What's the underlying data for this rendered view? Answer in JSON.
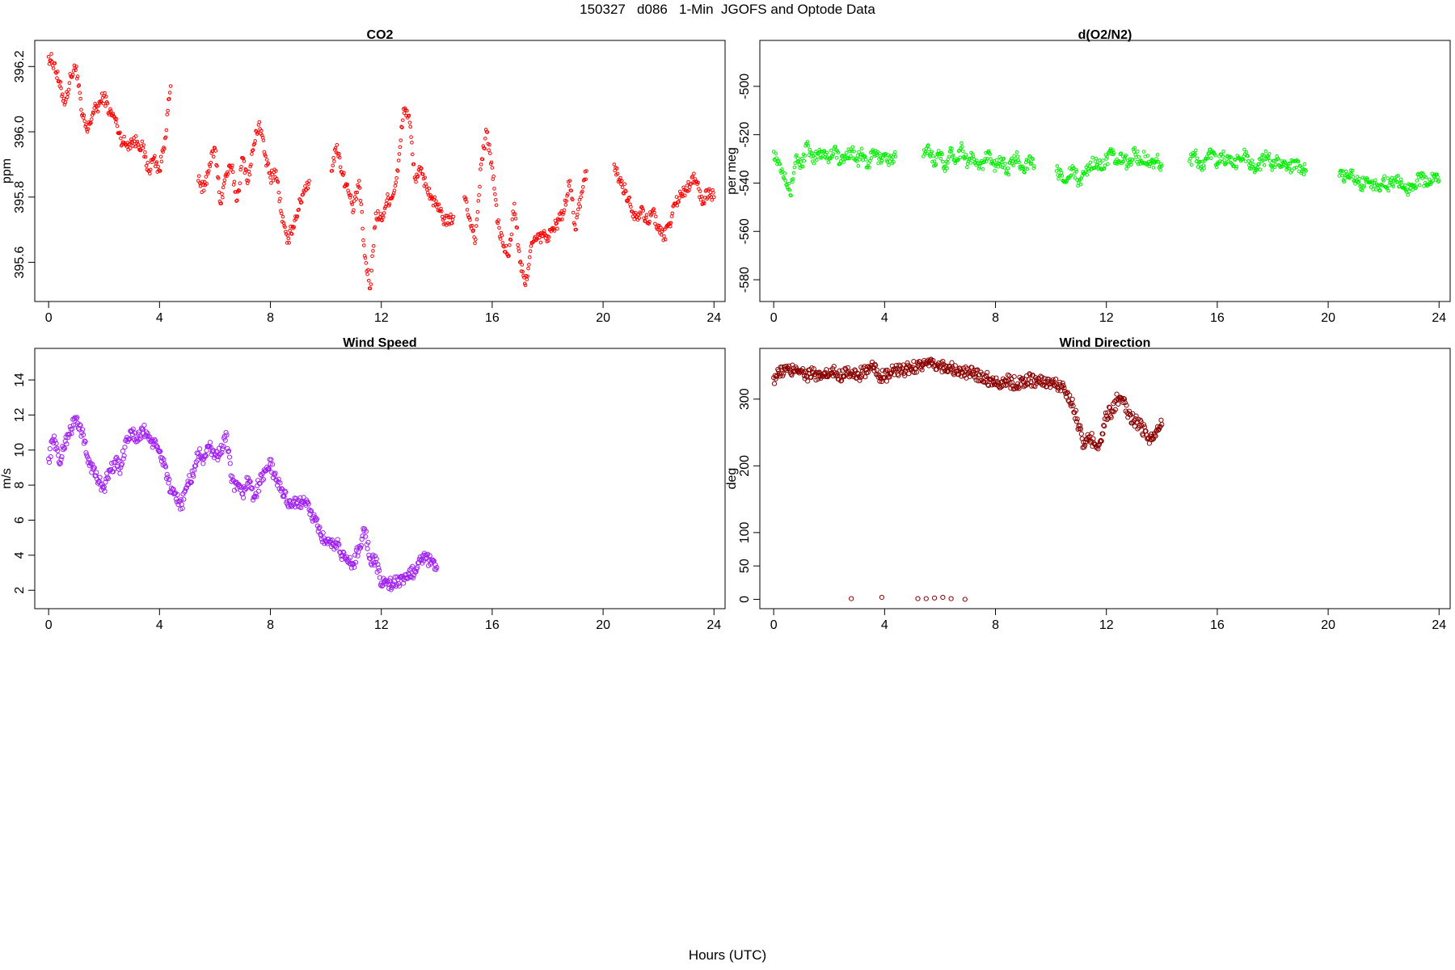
{
  "page_title": "150327   d086   1-Min  JGOFS and Optode Data",
  "x_axis_title": "Hours (UTC)",
  "chart_data": [
    {
      "type": "scatter",
      "title": "CO2",
      "ylabel": "ppm",
      "xlabel": "",
      "xlim": [
        -0.5,
        24.4
      ],
      "ylim": [
        395.48,
        396.28
      ],
      "x_ticks": [
        0,
        4,
        8,
        12,
        16,
        20,
        24
      ],
      "y_ticks": [
        395.6,
        395.8,
        396.0,
        396.2
      ],
      "y_tick_labels": [
        "395.6",
        "395.8",
        "396.0",
        "396.2"
      ],
      "color": "#ff0000",
      "marker_radius": 1.8,
      "series": [
        {
          "x": [
            0.0,
            0.2,
            0.4,
            0.6,
            0.8,
            1.0,
            1.2,
            1.4,
            1.6,
            1.8,
            2.0,
            2.2,
            2.4,
            2.6,
            2.8,
            3.0,
            3.2,
            3.4,
            3.6,
            3.8,
            4.0,
            4.2,
            4.4,
            5.4,
            5.6,
            5.8,
            6.0,
            6.2,
            6.4,
            6.6,
            6.8,
            7.0,
            7.2,
            7.4,
            7.6,
            7.8,
            8.0,
            8.2,
            8.4,
            8.6,
            8.8,
            9.0,
            9.2,
            9.4,
            10.2,
            10.4,
            10.6,
            10.8,
            11.0,
            11.2,
            11.4,
            11.6,
            11.8,
            12.0,
            12.2,
            12.4,
            12.6,
            12.8,
            13.0,
            13.2,
            13.4,
            13.6,
            13.8,
            14.0,
            14.2,
            14.4,
            14.6,
            15.0,
            15.2,
            15.4,
            15.6,
            15.8,
            16.0,
            16.2,
            16.4,
            16.6,
            16.8,
            17.0,
            17.2,
            17.4,
            17.6,
            17.8,
            18.0,
            18.2,
            18.4,
            18.6,
            18.8,
            19.0,
            19.2,
            19.4,
            20.4,
            20.6,
            20.8,
            21.0,
            21.2,
            21.4,
            21.6,
            21.8,
            22.0,
            22.2,
            22.4,
            22.6,
            22.8,
            23.0,
            23.2,
            23.4,
            23.6,
            23.8,
            24.0
          ],
          "y": [
            396.23,
            396.21,
            396.14,
            396.09,
            396.17,
            396.2,
            396.05,
            396.0,
            396.06,
            396.08,
            396.11,
            396.06,
            396.04,
            395.98,
            395.96,
            395.97,
            395.97,
            395.95,
            395.88,
            395.92,
            395.88,
            395.98,
            396.14,
            395.85,
            395.82,
            395.9,
            395.95,
            395.78,
            395.87,
            395.89,
            395.79,
            395.92,
            395.85,
            395.96,
            396.03,
            395.93,
            395.86,
            395.88,
            395.75,
            395.66,
            395.71,
            395.76,
            395.82,
            395.85,
            395.88,
            395.96,
            395.87,
            395.82,
            395.76,
            395.85,
            395.62,
            395.52,
            395.75,
            395.73,
            395.79,
            395.8,
            395.88,
            396.07,
            396.05,
            395.86,
            395.88,
            395.84,
            395.8,
            395.77,
            395.74,
            395.72,
            395.74,
            395.8,
            395.73,
            395.67,
            395.9,
            396.0,
            395.89,
            395.72,
            395.65,
            395.62,
            395.78,
            395.6,
            395.53,
            395.65,
            395.67,
            395.68,
            395.68,
            395.7,
            395.73,
            395.76,
            395.85,
            395.7,
            395.8,
            395.88,
            395.9,
            395.85,
            395.82,
            395.77,
            395.74,
            395.77,
            395.72,
            395.76,
            395.7,
            395.68,
            395.72,
            395.78,
            395.81,
            395.82,
            395.86,
            395.84,
            395.78,
            395.82,
            395.8
          ]
        }
      ]
    },
    {
      "type": "scatter",
      "title": "d(O2/N2)",
      "ylabel": "per meg",
      "xlabel": "",
      "xlim": [
        -0.5,
        24.4
      ],
      "ylim": [
        -589,
        -481
      ],
      "x_ticks": [
        0,
        4,
        8,
        12,
        16,
        20,
        24
      ],
      "y_ticks": [
        -580,
        -560,
        -540,
        -520,
        -500
      ],
      "y_tick_labels": [
        "-580",
        "-560",
        "-540",
        "-520",
        "-500"
      ],
      "color": "#00ee00",
      "marker_radius": 1.8,
      "series": [
        {
          "x": [
            0.0,
            0.2,
            0.4,
            0.6,
            0.8,
            1.0,
            1.2,
            1.4,
            1.6,
            1.8,
            2.0,
            2.2,
            2.4,
            2.6,
            2.8,
            3.0,
            3.2,
            3.4,
            3.6,
            3.8,
            4.0,
            4.2,
            4.4,
            5.4,
            5.6,
            5.8,
            6.0,
            6.2,
            6.4,
            6.6,
            6.8,
            7.0,
            7.2,
            7.4,
            7.6,
            7.8,
            8.0,
            8.2,
            8.4,
            8.6,
            8.8,
            9.0,
            9.2,
            9.4,
            10.2,
            10.4,
            10.6,
            10.8,
            11.0,
            11.2,
            11.4,
            11.6,
            11.8,
            12.0,
            12.2,
            12.4,
            12.6,
            12.8,
            13.0,
            13.2,
            13.4,
            13.6,
            13.8,
            14.0,
            15.0,
            15.2,
            15.4,
            15.6,
            15.8,
            16.0,
            16.2,
            16.4,
            16.6,
            16.8,
            17.0,
            17.2,
            17.4,
            17.6,
            17.8,
            18.0,
            18.2,
            18.4,
            18.6,
            18.8,
            19.0,
            19.2,
            20.4,
            20.6,
            20.8,
            21.0,
            21.2,
            21.4,
            21.6,
            21.8,
            22.0,
            22.2,
            22.4,
            22.6,
            22.8,
            23.0,
            23.2,
            23.4,
            23.6,
            23.8,
            24.0
          ],
          "y": [
            -527,
            -532,
            -536,
            -545,
            -529,
            -533,
            -524,
            -531,
            -528,
            -527,
            -530,
            -525,
            -532,
            -529,
            -526,
            -531,
            -528,
            -533,
            -527,
            -530,
            -528,
            -531,
            -529,
            -529,
            -526,
            -531,
            -528,
            -533,
            -527,
            -530,
            -525,
            -532,
            -529,
            -534,
            -531,
            -528,
            -533,
            -530,
            -535,
            -532,
            -529,
            -534,
            -531,
            -533,
            -535,
            -537,
            -538,
            -534,
            -540,
            -536,
            -533,
            -531,
            -534,
            -530,
            -528,
            -532,
            -529,
            -533,
            -527,
            -531,
            -529,
            -532,
            -530,
            -533,
            -531,
            -528,
            -534,
            -530,
            -527,
            -532,
            -529,
            -531,
            -533,
            -530,
            -528,
            -532,
            -534,
            -531,
            -529,
            -533,
            -530,
            -532,
            -534,
            -531,
            -533,
            -535,
            -537,
            -538,
            -536,
            -539,
            -541,
            -538,
            -540,
            -542,
            -539,
            -541,
            -538,
            -540,
            -543,
            -541,
            -539,
            -538,
            -541,
            -537,
            -539
          ]
        }
      ]
    },
    {
      "type": "scatter",
      "title": "Wind Speed",
      "ylabel": "m/s",
      "xlabel": "",
      "xlim": [
        -0.5,
        24.4
      ],
      "ylim": [
        0.95,
        15.8
      ],
      "x_ticks": [
        0,
        4,
        8,
        12,
        16,
        20,
        24
      ],
      "y_ticks": [
        2,
        4,
        6,
        8,
        10,
        12,
        14
      ],
      "y_tick_labels": [
        "2",
        "4",
        "6",
        "8",
        "10",
        "12",
        "14"
      ],
      "color": "#a020f0",
      "marker_radius": 2.6,
      "series": [
        {
          "x": [
            0.0,
            0.2,
            0.4,
            0.6,
            0.8,
            1.0,
            1.2,
            1.4,
            1.6,
            1.8,
            2.0,
            2.2,
            2.4,
            2.6,
            2.8,
            3.0,
            3.2,
            3.4,
            3.6,
            3.8,
            4.0,
            4.2,
            4.4,
            4.6,
            4.8,
            5.0,
            5.2,
            5.4,
            5.6,
            5.8,
            6.0,
            6.2,
            6.4,
            6.6,
            6.8,
            7.0,
            7.2,
            7.4,
            7.6,
            7.8,
            8.0,
            8.2,
            8.4,
            8.6,
            8.8,
            9.0,
            9.2,
            9.4,
            9.6,
            9.8,
            10.0,
            10.2,
            10.4,
            10.6,
            10.8,
            11.0,
            11.2,
            11.4,
            11.6,
            11.8,
            12.0,
            12.2,
            12.4,
            12.6,
            12.8,
            13.0,
            13.2,
            13.4,
            13.6,
            13.8,
            14.0
          ],
          "y": [
            9.5,
            10.8,
            9.2,
            10.5,
            11.2,
            11.8,
            11.0,
            9.6,
            8.9,
            8.2,
            7.9,
            8.8,
            9.3,
            9.0,
            10.6,
            11.1,
            10.5,
            11.2,
            10.8,
            10.3,
            9.9,
            9.1,
            7.6,
            7.2,
            6.9,
            8.0,
            8.6,
            9.8,
            9.5,
            10.2,
            9.7,
            9.8,
            11.0,
            8.2,
            7.8,
            7.5,
            8.4,
            7.3,
            8.1,
            8.8,
            9.2,
            8.3,
            7.8,
            7.1,
            7.0,
            6.8,
            7.3,
            6.6,
            6.0,
            5.2,
            4.8,
            4.5,
            4.7,
            4.0,
            3.6,
            3.5,
            4.5,
            5.5,
            3.8,
            3.6,
            2.4,
            2.5,
            2.3,
            2.6,
            2.4,
            2.9,
            3.1,
            3.9,
            3.8,
            3.6,
            3.3
          ]
        }
      ]
    },
    {
      "type": "scatter",
      "title": "Wind Direction",
      "ylabel": "deg",
      "xlabel": "",
      "xlim": [
        -0.5,
        24.4
      ],
      "ylim": [
        -14,
        376
      ],
      "x_ticks": [
        0,
        4,
        8,
        12,
        16,
        20,
        24
      ],
      "y_ticks": [
        0,
        50,
        100,
        200,
        300
      ],
      "y_tick_labels": [
        "0",
        "50",
        "100",
        "200",
        "300"
      ],
      "color": "#8b0000",
      "marker_radius": 2.6,
      "series": [
        {
          "x": [
            0.0,
            0.2,
            0.4,
            0.6,
            0.8,
            1.0,
            1.2,
            1.4,
            1.6,
            1.8,
            2.0,
            2.2,
            2.4,
            2.6,
            2.8,
            3.0,
            3.2,
            3.4,
            3.6,
            3.8,
            4.0,
            4.2,
            4.4,
            4.6,
            4.8,
            5.0,
            5.2,
            5.4,
            5.6,
            5.8,
            6.0,
            6.2,
            6.4,
            6.6,
            6.8,
            7.0,
            7.2,
            7.4,
            7.6,
            7.8,
            8.0,
            8.2,
            8.4,
            8.6,
            8.8,
            9.0,
            9.2,
            9.4,
            9.6,
            9.8,
            10.0,
            10.2,
            10.4,
            10.6,
            10.8,
            11.0,
            11.2,
            11.4,
            11.6,
            11.8,
            12.0,
            12.2,
            12.4,
            12.6,
            12.8,
            13.0,
            13.2,
            13.4,
            13.6,
            13.8,
            14.0,
            2.8,
            3.9,
            5.2,
            5.5,
            5.8,
            6.1,
            6.4,
            6.9
          ],
          "y": [
            332,
            338,
            345,
            340,
            348,
            342,
            335,
            340,
            330,
            338,
            336,
            340,
            334,
            345,
            338,
            332,
            342,
            340,
            348,
            336,
            332,
            338,
            344,
            340,
            346,
            348,
            350,
            352,
            350,
            351,
            349,
            350,
            346,
            342,
            340,
            338,
            340,
            336,
            333,
            329,
            326,
            325,
            327,
            325,
            323,
            327,
            329,
            328,
            326,
            326,
            324,
            322,
            318,
            310,
            290,
            260,
            228,
            244,
            232,
            238,
            275,
            282,
            300,
            295,
            278,
            268,
            260,
            252,
            240,
            252,
            262,
            1,
            3,
            1,
            1,
            2,
            3,
            1,
            0
          ]
        }
      ]
    }
  ]
}
